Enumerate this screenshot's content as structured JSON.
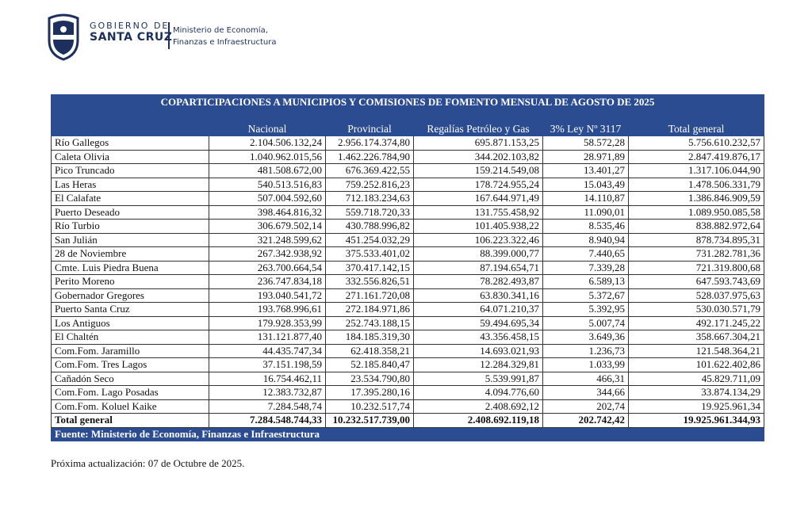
{
  "header": {
    "gov_line1": "GOBIERNO DE",
    "gov_line2": "SANTA CRUZ",
    "ministry_line1": "Ministerio de Economía,",
    "ministry_line2": "Finanzas e Infraestructura"
  },
  "table": {
    "title": "COPARTICIPACIONES A MUNICIPIOS  Y  COMISIONES  DE  FOMENTO  MENSUAL  DE  AGOSTO DE  2025",
    "columns": [
      "Nacional",
      "Provincial",
      "Regalías Petróleo y Gas",
      "3% Ley Nº 3117",
      "Total general"
    ],
    "rows": [
      [
        "Río Gallegos",
        "2.104.506.132,24",
        "2.956.174.374,80",
        "695.871.153,25",
        "58.572,28",
        "5.756.610.232,57"
      ],
      [
        "Caleta Olivia",
        "1.040.962.015,56",
        "1.462.226.784,90",
        "344.202.103,82",
        "28.971,89",
        "2.847.419.876,17"
      ],
      [
        "Pico Truncado",
        "481.508.672,00",
        "676.369.422,55",
        "159.214.549,08",
        "13.401,27",
        "1.317.106.044,90"
      ],
      [
        "Las Heras",
        "540.513.516,83",
        "759.252.816,23",
        "178.724.955,24",
        "15.043,49",
        "1.478.506.331,79"
      ],
      [
        "El Calafate",
        "507.004.592,60",
        "712.183.234,63",
        "167.644.971,49",
        "14.110,87",
        "1.386.846.909,59"
      ],
      [
        "Puerto Deseado",
        "398.464.816,32",
        "559.718.720,33",
        "131.755.458,92",
        "11.090,01",
        "1.089.950.085,58"
      ],
      [
        "Río Turbio",
        "306.679.502,14",
        "430.788.996,82",
        "101.405.938,22",
        "8.535,46",
        "838.882.972,64"
      ],
      [
        "San Julián",
        "321.248.599,62",
        "451.254.032,29",
        "106.223.322,46",
        "8.940,94",
        "878.734.895,31"
      ],
      [
        "28 de Noviembre",
        "267.342.938,92",
        "375.533.401,02",
        "88.399.000,77",
        "7.440,65",
        "731.282.781,36"
      ],
      [
        "Cmte. Luis Piedra Buena",
        "263.700.664,54",
        "370.417.142,15",
        "87.194.654,71",
        "7.339,28",
        "721.319.800,68"
      ],
      [
        "Perito Moreno",
        "236.747.834,18",
        "332.556.826,51",
        "78.282.493,87",
        "6.589,13",
        "647.593.743,69"
      ],
      [
        "Gobernador Gregores",
        "193.040.541,72",
        "271.161.720,08",
        "63.830.341,16",
        "5.372,67",
        "528.037.975,63"
      ],
      [
        "Puerto Santa Cruz",
        "193.768.996,61",
        "272.184.971,86",
        "64.071.210,37",
        "5.392,95",
        "530.030.571,79"
      ],
      [
        "Los Antiguos",
        "179.928.353,99",
        "252.743.188,15",
        "59.494.695,34",
        "5.007,74",
        "492.171.245,22"
      ],
      [
        "El Chaltén",
        "131.121.877,40",
        "184.185.319,30",
        "43.356.458,15",
        "3.649,36",
        "358.667.304,21"
      ],
      [
        "Com.Fom. Jaramillo",
        "44.435.747,34",
        "62.418.358,21",
        "14.693.021,93",
        "1.236,73",
        "121.548.364,21"
      ],
      [
        "Com.Fom. Tres Lagos",
        "37.151.198,59",
        "52.185.840,47",
        "12.284.329,81",
        "1.033,99",
        "101.622.402,86"
      ],
      [
        "Cañadón Seco",
        "16.754.462,11",
        "23.534.790,80",
        "5.539.991,87",
        "466,31",
        "45.829.711,09"
      ],
      [
        "Com.Fom. Lago Posadas",
        "12.383.732,87",
        "17.395.280,16",
        "4.094.776,60",
        "344,66",
        "33.874.134,29"
      ],
      [
        "Com.Fom. Koluel Kaike",
        "7.284.548,74",
        "10.232.517,74",
        "2.408.692,12",
        "202,74",
        "19.925.961,34"
      ]
    ],
    "total": [
      "Total general",
      "7.284.548.744,33",
      "10.232.517.739,00",
      "2.408.692.119,18",
      "202.742,42",
      "19.925.961.344,93"
    ],
    "source": "Fuente: Ministerio de Economía, Finanzas e Infraestructura"
  },
  "footnote": "Próxima actualización: 07 de Octubre de 2025."
}
